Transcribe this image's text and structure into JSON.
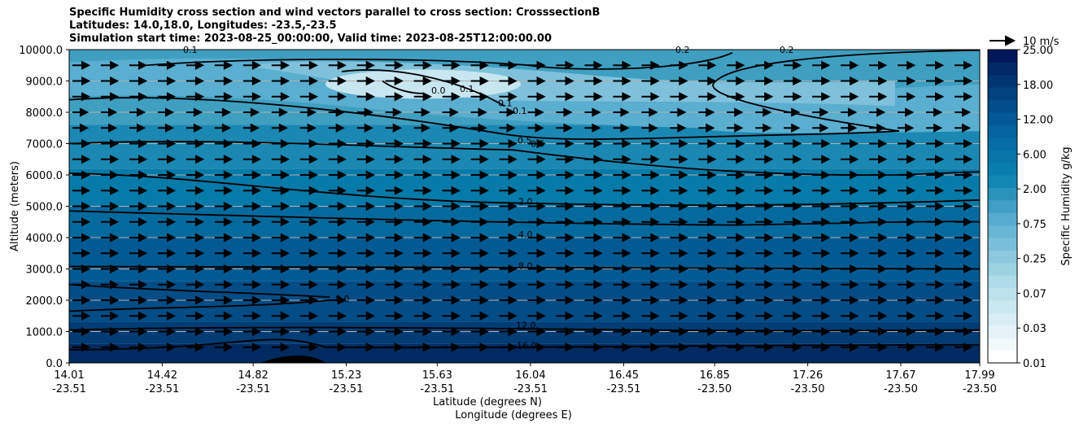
{
  "title_lines": [
    "Specific Humidity cross section and wind vectors parallel to cross section: CrosssectionB",
    "Latitudes: 14.0,18.0, Longitudes: -23.5,-23.5",
    "Simulation start time: 2023-08-25_00:00:00, Valid time: 2023-08-25T12:00:00.00"
  ],
  "chart_data": {
    "type": "contour",
    "title": "Specific Humidity cross section and wind vectors parallel to cross section: CrosssectionB",
    "ylabel": "Altitude (meters)",
    "xlabel_lat": "Latitude (degrees N)",
    "xlabel_lon": "Longitude (degrees E)",
    "ylim": [
      0,
      10000
    ],
    "y_ticks": [
      "0.0",
      "1000.0",
      "2000.0",
      "3000.0",
      "4000.0",
      "5000.0",
      "6000.0",
      "7000.0",
      "8000.0",
      "9000.0",
      "10000.0"
    ],
    "x_ticks": [
      {
        "lat": "14.01",
        "lon": "-23.51"
      },
      {
        "lat": "14.42",
        "lon": "-23.51"
      },
      {
        "lat": "14.82",
        "lon": "-23.51"
      },
      {
        "lat": "15.23",
        "lon": "-23.51"
      },
      {
        "lat": "15.63",
        "lon": "-23.51"
      },
      {
        "lat": "16.04",
        "lon": "-23.51"
      },
      {
        "lat": "16.45",
        "lon": "-23.51"
      },
      {
        "lat": "16.85",
        "lon": "-23.50"
      },
      {
        "lat": "17.26",
        "lon": "-23.50"
      },
      {
        "lat": "17.67",
        "lon": "-23.50"
      },
      {
        "lat": "17.99",
        "lon": "-23.50"
      }
    ],
    "colorbar": {
      "label": "Specific Humidity g/kg",
      "levels": [
        0.01,
        0.02,
        0.03,
        0.05,
        0.07,
        0.1,
        0.25,
        0.35,
        0.5,
        0.75,
        1,
        1.5,
        2,
        3,
        4,
        5,
        6,
        8,
        10,
        12,
        14,
        16,
        18,
        20,
        22,
        25
      ],
      "tick_labels": [
        "25.00",
        "18.00",
        "12.00",
        "6.00",
        "2.00",
        "0.75",
        "0.25",
        "0.07",
        "0.03",
        "0.01"
      ]
    },
    "contour_labels": [
      "0.0",
      "0.1",
      "0.1",
      "0.1",
      "0.5",
      "0.5",
      "2.0",
      "4.0",
      "8.0",
      "8.0",
      "12.0",
      "16.0",
      "0.2",
      "0.2",
      "0.1"
    ],
    "quiver_key": "10 m/s"
  }
}
